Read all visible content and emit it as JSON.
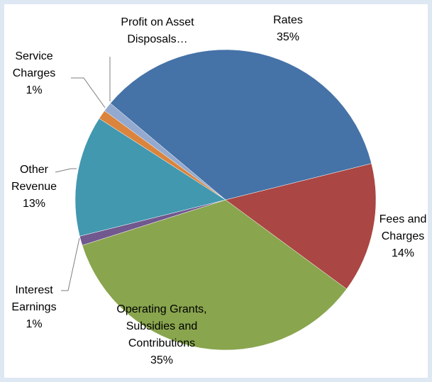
{
  "chart_data": {
    "type": "pie",
    "categories": [
      "Rates",
      "Fees and Charges",
      "Operating Grants, Subsidies and Contributions",
      "Interest Earnings",
      "Other Revenue",
      "Service Charges",
      "Profit on Asset Disposals…"
    ],
    "values": [
      35,
      14,
      35,
      1,
      13,
      1,
      1
    ],
    "value_labels": [
      "35%",
      "14%",
      "35%",
      "1%",
      "13%",
      "1%",
      null
    ],
    "colors": [
      "#4572a7",
      "#aa4643",
      "#89a54e",
      "#71588f",
      "#4198af",
      "#db843d",
      "#93a9cf"
    ]
  }
}
